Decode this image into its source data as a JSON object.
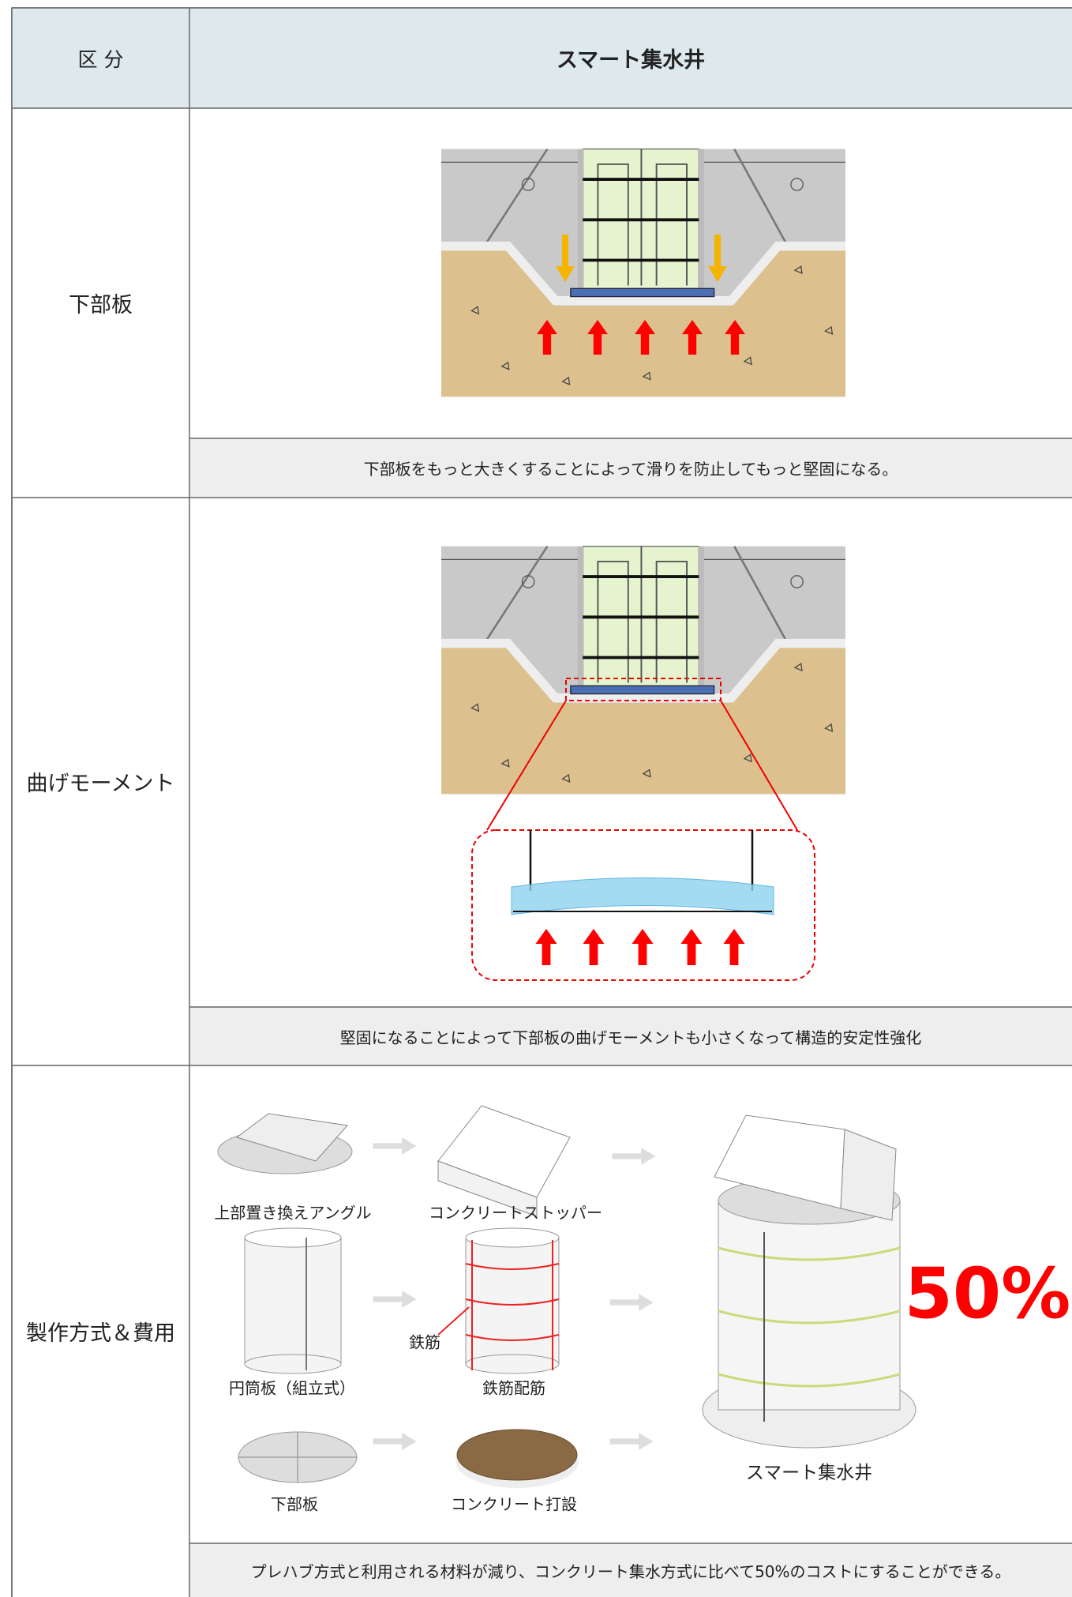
{
  "header": {
    "col1": "区 分",
    "col2": "スマート集水井"
  },
  "rows": [
    {
      "label": "下部板",
      "caption": "下部板をもっと大きくすることによって滑りを防止してもっと堅固になる。"
    },
    {
      "label": "曲げモーメント",
      "caption": "堅固になることによって下部板の曲げモーメントも小さくなって構造的安定性強化"
    },
    {
      "label": "製作方式＆費用",
      "caption": "プレハブ方式と利用される材料が減り、コンクリート集水方式に比べて50%のコストにすることができる。",
      "items": [
        "上部置き換えアングル",
        "コンクリートストッパー",
        "円筒板（組立式）",
        "鉄筋配筋",
        "下部板",
        "コンクリート打設"
      ],
      "rebar_note": "鉄筋",
      "product": "スマート集水井",
      "cost_label": "50%"
    }
  ]
}
